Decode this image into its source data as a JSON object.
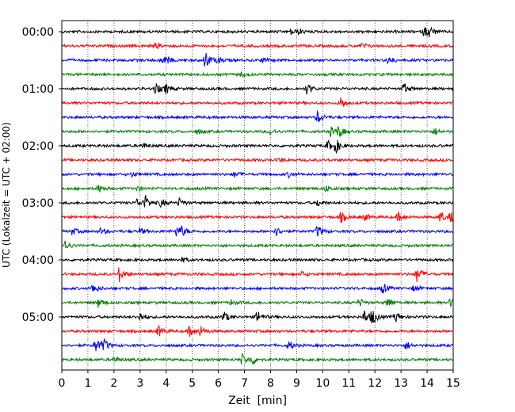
{
  "chart_data": {
    "type": "line",
    "subtype": "helicorder",
    "title": "",
    "xlabel": "Zeit  [min]",
    "ylabel": "UTC (Lokalzeit = UTC + 02:00)",
    "xlim": [
      0,
      15
    ],
    "x_ticks": [
      "0",
      "1",
      "2",
      "3",
      "4",
      "5",
      "6",
      "7",
      "8",
      "9",
      "10",
      "11",
      "12",
      "13",
      "14",
      "15"
    ],
    "y_tick_labels": [
      "00:00",
      "01:00",
      "02:00",
      "03:00",
      "04:00",
      "05:00"
    ],
    "grid": "vertical dotted at each minute",
    "trace_interval_minutes": 15,
    "color_cycle": [
      "#000000",
      "#ff0000",
      "#0000ff",
      "#008000"
    ],
    "traces": [
      {
        "start": "00:00",
        "color": "black",
        "events": [
          [
            8.8,
            0.5
          ],
          [
            9.1,
            0.4
          ],
          [
            13.9,
            0.9
          ],
          [
            14.1,
            0.7
          ]
        ]
      },
      {
        "start": "00:15",
        "color": "red",
        "events": [
          [
            3.6,
            0.5
          ],
          [
            11.5,
            0.4
          ]
        ]
      },
      {
        "start": "00:30",
        "color": "blue",
        "events": [
          [
            3.8,
            0.5
          ],
          [
            4.0,
            0.6
          ],
          [
            5.5,
            1.6
          ],
          [
            6.0,
            0.5
          ],
          [
            7.7,
            0.4
          ],
          [
            12.5,
            0.7
          ]
        ]
      },
      {
        "start": "00:45",
        "color": "green",
        "events": [
          [
            6.9,
            0.4
          ]
        ]
      },
      {
        "start": "01:00",
        "color": "black",
        "events": [
          [
            3.6,
            0.9
          ],
          [
            4.0,
            0.8
          ],
          [
            9.4,
            0.9
          ],
          [
            13.1,
            1.0
          ]
        ]
      },
      {
        "start": "01:15",
        "color": "red",
        "events": [
          [
            10.7,
            1.1
          ]
        ]
      },
      {
        "start": "01:30",
        "color": "blue",
        "events": [
          [
            9.8,
            1.1
          ]
        ]
      },
      {
        "start": "01:45",
        "color": "green",
        "events": [
          [
            5.2,
            0.4
          ],
          [
            8.0,
            0.5
          ],
          [
            10.3,
            0.8
          ],
          [
            10.6,
            1.0
          ],
          [
            14.3,
            0.6
          ]
        ]
      },
      {
        "start": "02:00",
        "color": "black",
        "events": [
          [
            3.1,
            0.4
          ],
          [
            10.2,
            0.9
          ],
          [
            10.5,
            1.1
          ]
        ]
      },
      {
        "start": "02:15",
        "color": "red",
        "events": [
          [
            8.3,
            0.4
          ]
        ]
      },
      {
        "start": "02:30",
        "color": "blue",
        "events": [
          [
            2.7,
            0.4
          ],
          [
            6.6,
            0.5
          ],
          [
            8.7,
            0.4
          ]
        ]
      },
      {
        "start": "02:45",
        "color": "green",
        "events": [
          [
            1.4,
            0.7
          ],
          [
            2.9,
            0.4
          ],
          [
            10.1,
            0.6
          ]
        ]
      },
      {
        "start": "03:00",
        "color": "black",
        "events": [
          [
            2.9,
            0.7
          ],
          [
            3.2,
            1.2
          ],
          [
            3.8,
            0.7
          ],
          [
            4.5,
            0.7
          ],
          [
            9.8,
            0.6
          ]
        ]
      },
      {
        "start": "03:15",
        "color": "red",
        "events": [
          [
            10.7,
            0.9
          ],
          [
            11.6,
            0.6
          ],
          [
            12.9,
            0.8
          ],
          [
            14.5,
            1.0
          ],
          [
            14.9,
            0.9
          ]
        ]
      },
      {
        "start": "03:30",
        "color": "blue",
        "events": [
          [
            0.4,
            0.6
          ],
          [
            1.5,
            0.6
          ],
          [
            3.0,
            0.5
          ],
          [
            4.4,
            0.8
          ],
          [
            4.6,
            0.7
          ],
          [
            8.2,
            0.8
          ],
          [
            9.8,
            1.1
          ]
        ]
      },
      {
        "start": "03:45",
        "color": "green",
        "events": [
          [
            0.1,
            1.0
          ]
        ]
      },
      {
        "start": "04:00",
        "color": "black",
        "events": [
          [
            4.6,
            0.4
          ]
        ]
      },
      {
        "start": "04:15",
        "color": "red",
        "events": [
          [
            2.2,
            1.3
          ],
          [
            9.2,
            0.4
          ],
          [
            13.6,
            1.4
          ]
        ]
      },
      {
        "start": "04:30",
        "color": "blue",
        "events": [
          [
            1.2,
            0.9
          ],
          [
            12.3,
            0.9
          ],
          [
            13.5,
            0.5
          ]
        ]
      },
      {
        "start": "04:45",
        "color": "green",
        "events": [
          [
            1.4,
            0.8
          ],
          [
            6.5,
            0.5
          ],
          [
            11.4,
            0.7
          ],
          [
            12.5,
            0.9
          ],
          [
            14.9,
            0.8
          ]
        ]
      },
      {
        "start": "05:00",
        "color": "black",
        "events": [
          [
            3.0,
            0.8
          ],
          [
            6.2,
            1.0
          ],
          [
            7.5,
            1.1
          ],
          [
            11.6,
            1.2
          ],
          [
            11.9,
            1.3
          ],
          [
            12.8,
            0.9
          ]
        ]
      },
      {
        "start": "05:15",
        "color": "red",
        "events": [
          [
            3.7,
            1.0
          ],
          [
            4.9,
            1.0
          ],
          [
            5.3,
            0.9
          ]
        ]
      },
      {
        "start": "05:30",
        "color": "blue",
        "events": [
          [
            1.3,
            1.4
          ],
          [
            1.6,
            1.0
          ],
          [
            8.7,
            0.8
          ],
          [
            13.2,
            0.7
          ]
        ]
      },
      {
        "start": "05:45",
        "color": "green",
        "events": [
          [
            6.9,
            1.1
          ],
          [
            7.3,
            0.9
          ],
          [
            2.0,
            0.5
          ]
        ]
      }
    ]
  }
}
